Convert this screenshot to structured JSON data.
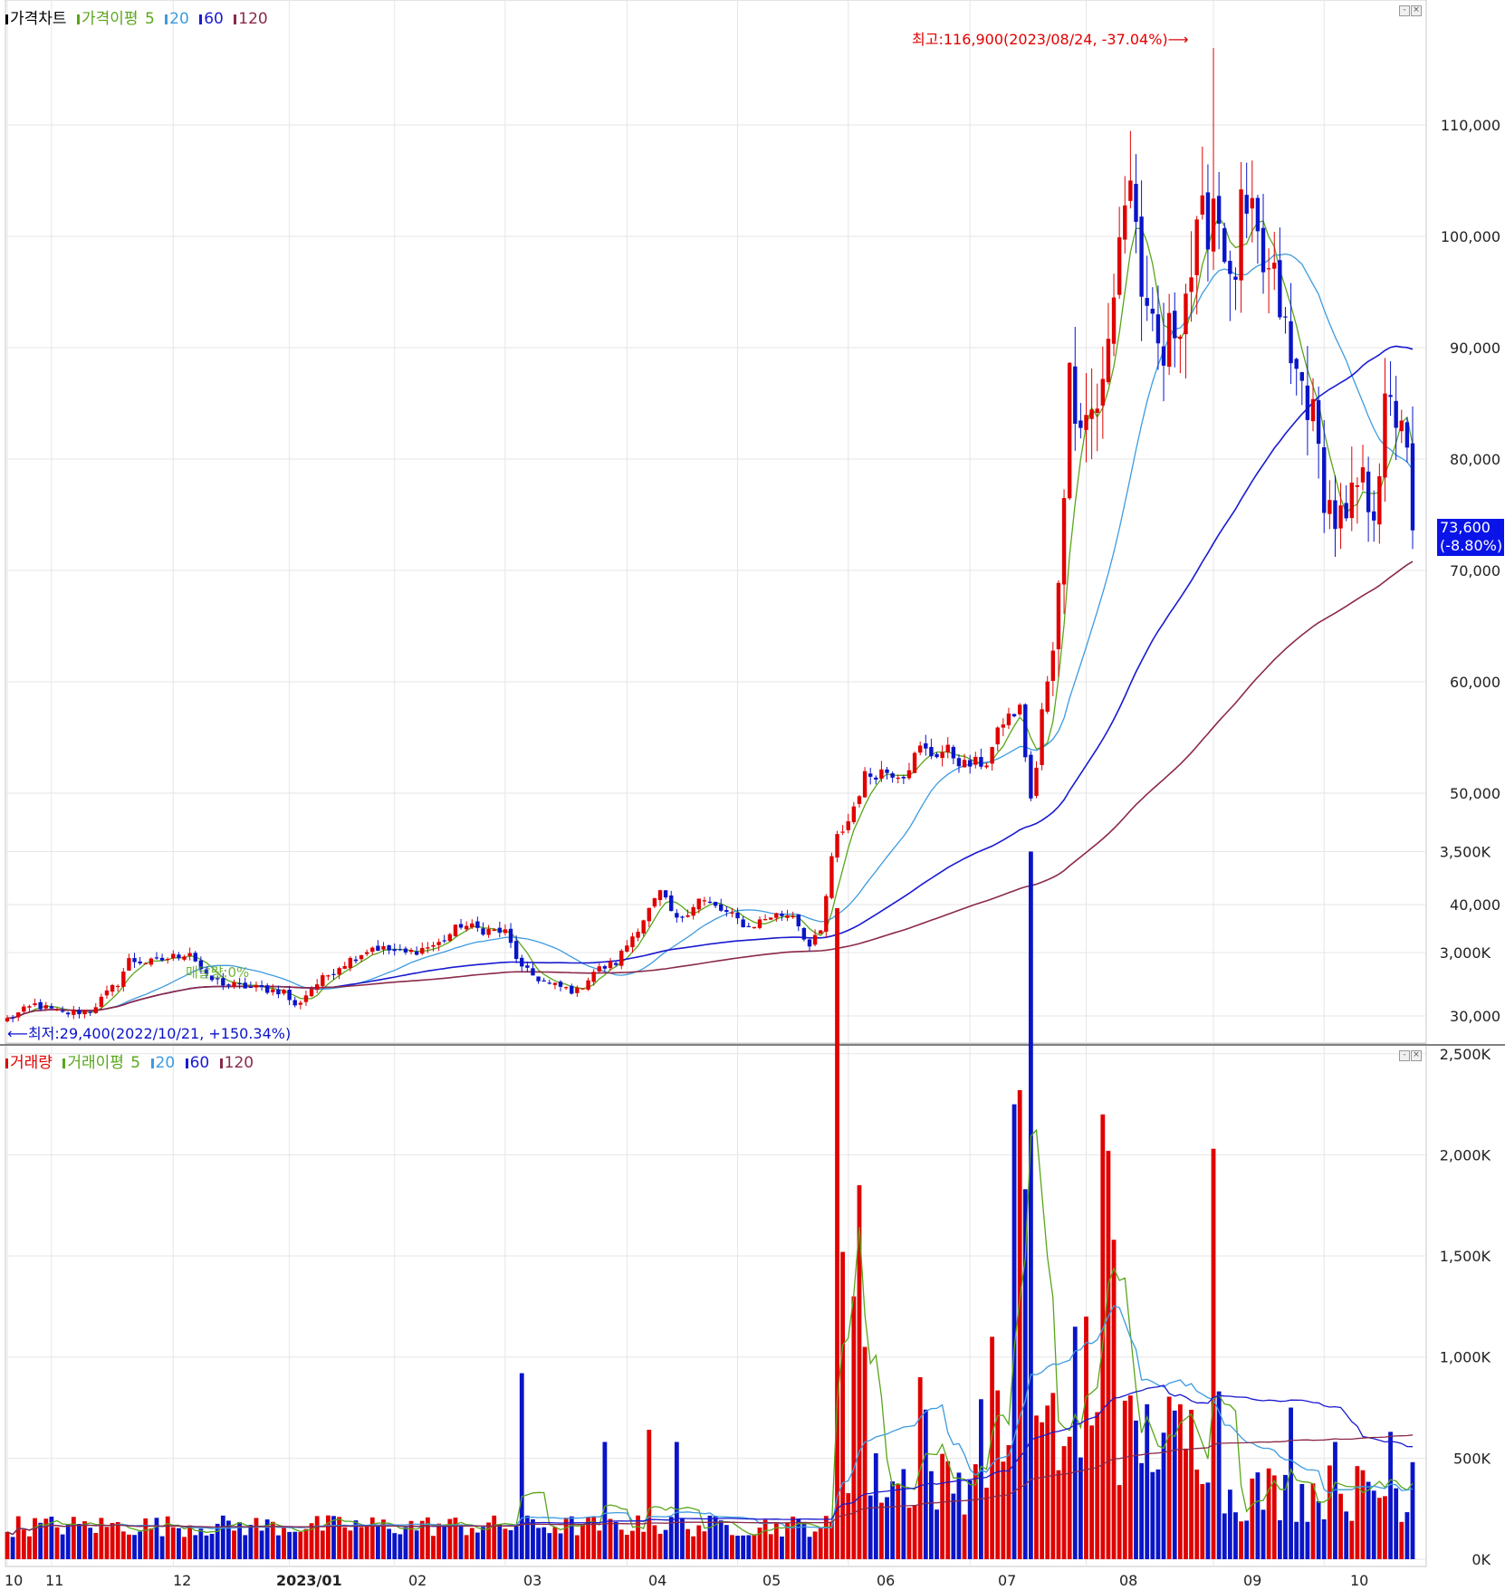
{
  "price_panel": {
    "legend": {
      "title": "가격차트",
      "ma_label": "가격이평",
      "periods": [
        "5",
        "20",
        "60",
        "120"
      ]
    },
    "high_annotation": "최고:116,900(2023/08/24, -37.04%)⟶",
    "low_annotation": "⟵최저:29,400(2022/10/21, +150.34%)",
    "shadow_annotation": "매달량:0%",
    "current_price": "73,600",
    "current_change": "(-8.80%)"
  },
  "volume_panel": {
    "legend": {
      "title": "거래량",
      "ma_label": "거래이평",
      "periods": [
        "5",
        "20",
        "60",
        "120"
      ]
    }
  },
  "x_axis": {
    "labels": [
      "10",
      "11",
      "12",
      "2023/01",
      "02",
      "03",
      "04",
      "05",
      "06",
      "07",
      "08",
      "09",
      "10"
    ]
  },
  "colors": {
    "up": "#e00000",
    "down": "#0a14c8",
    "ma5": "#59a61a",
    "ma20": "#3d9be0",
    "ma60": "#1a1ad0",
    "ma120": "#8b2a48",
    "highlight_bg": "#0a14e8"
  },
  "chart_data": [
    {
      "type": "candlestick",
      "title": "가격차트",
      "x": [
        "2022-10",
        "2022-11",
        "2022-12",
        "2023-01",
        "2023-02",
        "2023-03",
        "2023-04",
        "2023-05",
        "2023-06",
        "2023-07",
        "2023-08",
        "2023-09",
        "2023-10"
      ],
      "x_ticks": [
        "10",
        "11",
        "12",
        "2023/01",
        "02",
        "03",
        "04",
        "05",
        "06",
        "07",
        "08",
        "09",
        "10"
      ],
      "y_ticks": [
        "30,000",
        "40,000",
        "50,000",
        "60,000",
        "70,000",
        "80,000",
        "90,000",
        "100,000",
        "110,000"
      ],
      "ylim": [
        28500,
        117500
      ],
      "grid": true,
      "anchors": [
        [
          0,
          29700
        ],
        [
          5,
          31000
        ],
        [
          10,
          30200
        ],
        [
          15,
          30500
        ],
        [
          20,
          33000
        ],
        [
          22,
          35000
        ],
        [
          26,
          34800
        ],
        [
          30,
          35300
        ],
        [
          33,
          35800
        ],
        [
          36,
          33400
        ],
        [
          40,
          32800
        ],
        [
          45,
          32500
        ],
        [
          50,
          32200
        ],
        [
          52,
          30800
        ],
        [
          55,
          32500
        ],
        [
          60,
          34500
        ],
        [
          66,
          36200
        ],
        [
          72,
          35600
        ],
        [
          78,
          36500
        ],
        [
          82,
          38200
        ],
        [
          85,
          37800
        ],
        [
          90,
          37500
        ],
        [
          93,
          34200
        ],
        [
          98,
          32800
        ],
        [
          103,
          32200
        ],
        [
          106,
          34000
        ],
        [
          110,
          34800
        ],
        [
          114,
          38000
        ],
        [
          118,
          41000
        ],
        [
          121,
          38500
        ],
        [
          125,
          40500
        ],
        [
          130,
          39200
        ],
        [
          134,
          38000
        ],
        [
          138,
          39000
        ],
        [
          142,
          39200
        ],
        [
          145,
          36200
        ],
        [
          147,
          37500
        ],
        [
          149,
          44000
        ],
        [
          150,
          46000
        ],
        [
          152,
          47500
        ],
        [
          155,
          51500
        ],
        [
          158,
          52000
        ],
        [
          162,
          51800
        ],
        [
          165,
          54000
        ],
        [
          167,
          53500
        ],
        [
          170,
          53800
        ],
        [
          173,
          52500
        ],
        [
          177,
          52800
        ],
        [
          180,
          56500
        ],
        [
          183,
          57500
        ],
        [
          185,
          49500
        ],
        [
          186,
          52000
        ],
        [
          187,
          57500
        ],
        [
          189,
          62000
        ],
        [
          190,
          70000
        ],
        [
          192,
          87000
        ],
        [
          195,
          84000
        ],
        [
          198,
          86000
        ],
        [
          200,
          94000
        ],
        [
          201,
          101000
        ],
        [
          203,
          105500
        ],
        [
          206,
          91000
        ],
        [
          209,
          89000
        ],
        [
          212,
          94000
        ],
        [
          215,
          98500
        ],
        [
          218,
          104000
        ],
        [
          220,
          100000
        ],
        [
          221,
          94000
        ],
        [
          223,
          101000
        ],
        [
          225,
          100000
        ],
        [
          227,
          97000
        ],
        [
          230,
          94000
        ],
        [
          232,
          88000
        ],
        [
          235,
          86000
        ],
        [
          237,
          80000
        ],
        [
          239,
          75500
        ],
        [
          242,
          73500
        ],
        [
          244,
          77500
        ],
        [
          247,
          76500
        ],
        [
          249,
          83500
        ],
        [
          252,
          84500
        ],
        [
          254,
          73600
        ]
      ],
      "n_candles": 255,
      "series": [
        {
          "name": "5",
          "kind": "moving_average",
          "period": 5
        },
        {
          "name": "20",
          "kind": "moving_average",
          "period": 20
        },
        {
          "name": "60",
          "kind": "moving_average",
          "period": 60
        },
        {
          "name": "120",
          "kind": "moving_average",
          "period": 120
        }
      ],
      "annotations": [
        {
          "text": "최고:116,900(2023/08/24, -37.04%)⟶",
          "value": 116900,
          "date": "2023-08-24"
        },
        {
          "text": "⟵최저:29,400(2022/10/21, +150.34%)",
          "value": 29400,
          "date": "2022-10-21"
        }
      ],
      "last_value": 73600,
      "last_change": "-8.80%"
    },
    {
      "type": "bar",
      "title": "거래량",
      "y_ticks": [
        "0K",
        "500K",
        "1,000K",
        "1,500K",
        "2,000K",
        "2,500K",
        "3,000K",
        "3,500K"
      ],
      "ylim": [
        0,
        3600
      ],
      "unit": "K",
      "spikes": [
        [
          93,
          920
        ],
        [
          108,
          580
        ],
        [
          116,
          640
        ],
        [
          121,
          580
        ],
        [
          150,
          3220
        ],
        [
          151,
          1520
        ],
        [
          153,
          1300
        ],
        [
          154,
          1850
        ],
        [
          155,
          1050
        ],
        [
          165,
          900
        ],
        [
          166,
          740
        ],
        [
          178,
          1100
        ],
        [
          182,
          2250
        ],
        [
          183,
          2320
        ],
        [
          184,
          1830
        ],
        [
          185,
          3500
        ],
        [
          193,
          1150
        ],
        [
          195,
          1200
        ],
        [
          198,
          2200
        ],
        [
          199,
          2020
        ],
        [
          200,
          1580
        ],
        [
          218,
          2030
        ],
        [
          219,
          830
        ],
        [
          232,
          750
        ],
        [
          240,
          580
        ],
        [
          250,
          630
        ],
        [
          254,
          480
        ]
      ],
      "series": [
        {
          "name": "5",
          "kind": "moving_average",
          "period": 5
        },
        {
          "name": "20",
          "kind": "moving_average",
          "period": 20
        },
        {
          "name": "60",
          "kind": "moving_average",
          "period": 60
        },
        {
          "name": "120",
          "kind": "moving_average",
          "period": 120
        }
      ]
    }
  ]
}
